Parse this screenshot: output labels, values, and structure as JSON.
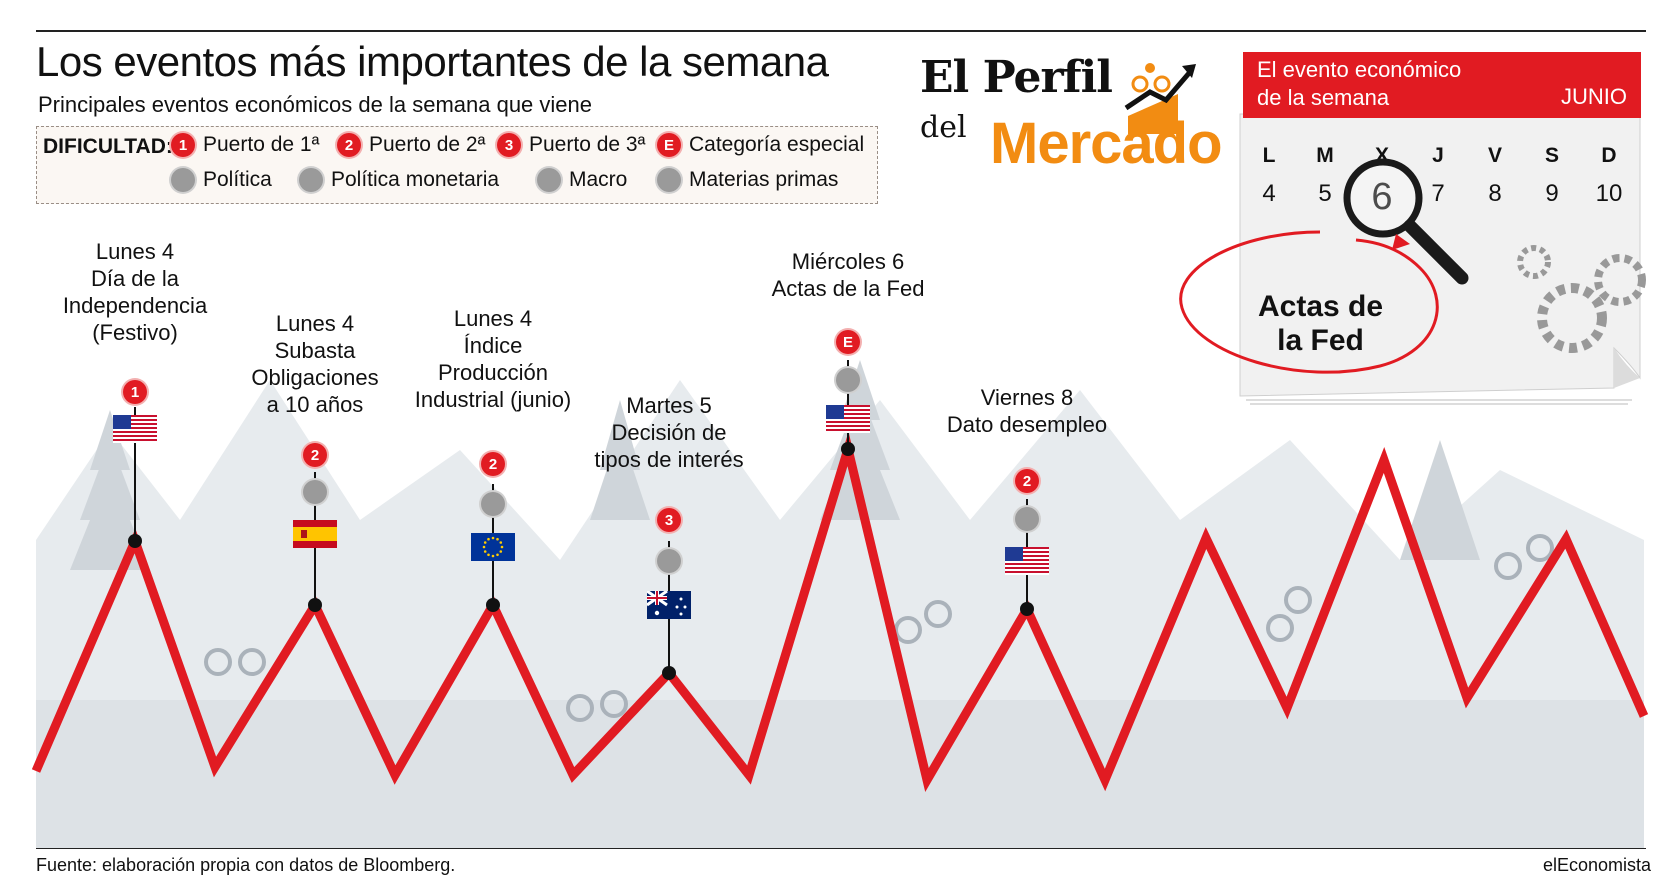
{
  "header": {
    "title": "Los eventos más importantes de la semana",
    "subtitle": "Principales eventos económicos de la semana que viene"
  },
  "legend": {
    "label": "DIFICULTAD:",
    "items": [
      {
        "badge": "1",
        "text": "Puerto de 1ª",
        "icon": "difficulty-1-badge"
      },
      {
        "badge": "2",
        "text": "Puerto de 2ª",
        "icon": "difficulty-2-badge"
      },
      {
        "badge": "3",
        "text": "Puerto de 3ª",
        "icon": "difficulty-3-badge"
      },
      {
        "badge": "E",
        "text": "Categoría especial",
        "icon": "difficulty-e-badge"
      },
      {
        "badge": "",
        "text": "Política",
        "icon": "politics-icon"
      },
      {
        "badge": "",
        "text": "Política monetaria",
        "icon": "monetary-policy-icon"
      },
      {
        "badge": "",
        "text": "Macro",
        "icon": "macro-icon"
      },
      {
        "badge": "",
        "text": "Materias primas",
        "icon": "commodities-icon"
      }
    ]
  },
  "logo": {
    "line1": "El Perfil",
    "line2": "del",
    "line3": "Mercado"
  },
  "calendar": {
    "header_line1": "El evento económico",
    "header_line2": "de la semana",
    "month": "JUNIO",
    "days": [
      "L",
      "M",
      "X",
      "J",
      "V",
      "S",
      "D"
    ],
    "numbers": [
      "4",
      "5",
      "6",
      "7",
      "8",
      "9",
      "10"
    ],
    "highlighted": "6",
    "callout_line1": "Actas de",
    "callout_line2": "la Fed"
  },
  "events": [
    {
      "lines": [
        "Lunes 4",
        "Día de la",
        "Independencia",
        "(Festivo)"
      ],
      "badge": "1",
      "category": "",
      "flag": "usa-flag"
    },
    {
      "lines": [
        "Lunes 4",
        "Subasta",
        "Obligaciones",
        "a 10 años"
      ],
      "badge": "2",
      "category": "monetary-policy-icon",
      "flag": "spain-flag"
    },
    {
      "lines": [
        "Lunes 4",
        "Índice",
        "Producción",
        "Industrial (junio)"
      ],
      "badge": "2",
      "category": "macro-icon",
      "flag": "eu-flag"
    },
    {
      "lines": [
        "Martes 5",
        "Decisión de",
        "tipos de interés"
      ],
      "badge": "3",
      "category": "monetary-policy-icon",
      "flag": "australia-flag"
    },
    {
      "lines": [
        "Miércoles 6",
        "Actas de la Fed"
      ],
      "badge": "E",
      "category": "monetary-policy-icon",
      "flag": "usa-flag"
    },
    {
      "lines": [
        "Viernes 8",
        "Dato desempleo"
      ],
      "badge": "2",
      "category": "macro-icon",
      "flag": "usa-flag"
    }
  ],
  "footer": {
    "source": "Fuente: elaboración propia con datos de Bloomberg.",
    "brand": "elEconomista"
  },
  "colors": {
    "accent_red": "#e11b22",
    "logo_orange": "#f28c12",
    "mountain_grey": "#c9d0d6"
  }
}
